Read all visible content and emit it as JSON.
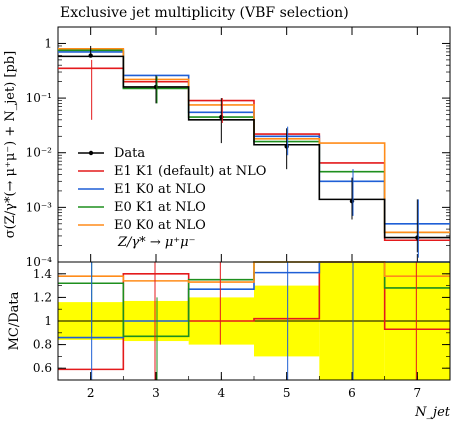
{
  "chart_data": {
    "title": "Exclusive jet multiplicity (VBF selection)",
    "panels": [
      {
        "type": "line",
        "name": "main",
        "yscale": "log",
        "ylabel": "σ(Z/γ*(→ μ⁺μ⁻) + N_jet) [pb]",
        "xlim": [
          1.5,
          7.5
        ],
        "ylim": [
          0.0001,
          2
        ],
        "yticks": [
          {
            "v": 1,
            "label": "1"
          },
          {
            "v": 0.1,
            "label": "10⁻¹"
          },
          {
            "v": 0.01,
            "label": "10⁻²"
          },
          {
            "v": 0.001,
            "label": "10⁻³"
          },
          {
            "v": 0.0001,
            "label": "10⁻⁴"
          }
        ],
        "series": [
          {
            "name": "E1 K1 (default) at NLO",
            "color": "#e41a1c",
            "values": [
              0.35,
              0.2,
              0.09,
              0.022,
              0.0065,
              0.00025
            ]
          },
          {
            "name": "E1 K0 at NLO",
            "color": "#1f5fd6",
            "values": [
              0.7,
              0.26,
              0.055,
              0.02,
              0.003,
              0.0005
            ]
          },
          {
            "name": "E0 K1 at NLO",
            "color": "#1e8f1e",
            "values": [
              0.75,
              0.15,
              0.045,
              0.016,
              0.0045,
              0.00035
            ]
          },
          {
            "name": "E0 K0 at NLO",
            "color": "#ff8c1a",
            "values": [
              0.8,
              0.22,
              0.075,
              0.018,
              0.015,
              0.00035
            ]
          }
        ],
        "data": {
          "name": "Data",
          "color": "#000000",
          "x": [
            2,
            3,
            4,
            5,
            6,
            7
          ],
          "y": [
            0.6,
            0.16,
            0.045,
            0.013,
            0.0013,
            0.00028
          ],
          "yerr_low": [
            0.57,
            0.08,
            0.015,
            0.005,
            0.0006,
            0.00015
          ],
          "yerr_high": [
            0.9,
            0.26,
            0.1,
            0.028,
            0.0035,
            0.0014
          ]
        },
        "hline_black": [
          0.58,
          0.16,
          0.04,
          0.014,
          0.0014,
          0.00028
        ],
        "legend_position": "lower-left",
        "process_label": "Z/γ* → μ⁺μ⁻"
      },
      {
        "type": "line",
        "name": "ratio",
        "ylabel": "MC/Data",
        "xlabel": "N_jet",
        "xlim": [
          1.5,
          7.5
        ],
        "ylim": [
          0.5,
          1.5
        ],
        "yticks": [
          {
            "v": 0.6,
            "label": "0.6"
          },
          {
            "v": 0.8,
            "label": "0.8"
          },
          {
            "v": 1.0,
            "label": "1"
          },
          {
            "v": 1.2,
            "label": "1.2"
          },
          {
            "v": 1.4,
            "label": "1.4"
          }
        ],
        "xticks": [
          2,
          3,
          4,
          5,
          6,
          7
        ],
        "band_data_uncertainty": [
          0.16,
          0.17,
          0.2,
          0.3,
          0.5,
          0.5
        ],
        "series": [
          {
            "name": "E1 K1 (default) at NLO",
            "color": "#e41a1c",
            "values": [
              0.59,
              1.4,
              1.0,
              1.02,
              1.55,
              0.93
            ]
          },
          {
            "name": "E1 K0 at NLO",
            "color": "#1f5fd6",
            "values": [
              0.86,
              1.0,
              1.27,
              1.41,
              1.55,
              1.55
            ]
          },
          {
            "name": "E0 K1 at NLO",
            "color": "#1e8f1e",
            "values": [
              1.32,
              0.87,
              1.35,
              1.55,
              1.55,
              1.28
            ]
          },
          {
            "name": "E0 K0 at NLO",
            "color": "#ff8c1a",
            "values": [
              1.38,
              1.34,
              1.33,
              1.55,
              1.55,
              1.38
            ]
          }
        ],
        "error_bars": [
          {
            "x": 2,
            "color": "#1e8f1e",
            "lo": 0.9,
            "hi": 1.55
          },
          {
            "x": 2,
            "color": "#1f5fd6",
            "lo": 0.5,
            "hi": 1.55
          },
          {
            "x": 3,
            "color": "#e41a1c",
            "lo": 0.5,
            "hi": 1.55
          },
          {
            "x": 3,
            "color": "#1e8f1e",
            "lo": 0.5,
            "hi": 1.2
          },
          {
            "x": 4,
            "color": "#e41a1c",
            "lo": 0.8,
            "hi": 1.5
          },
          {
            "x": 5,
            "color": "#1f5fd6",
            "lo": 0.5,
            "hi": 1.55
          },
          {
            "x": 6,
            "color": "#1f5fd6",
            "lo": 0.5,
            "hi": 1.55
          },
          {
            "x": 7,
            "color": "#e41a1c",
            "lo": 0.5,
            "hi": 1.55
          }
        ]
      }
    ]
  }
}
